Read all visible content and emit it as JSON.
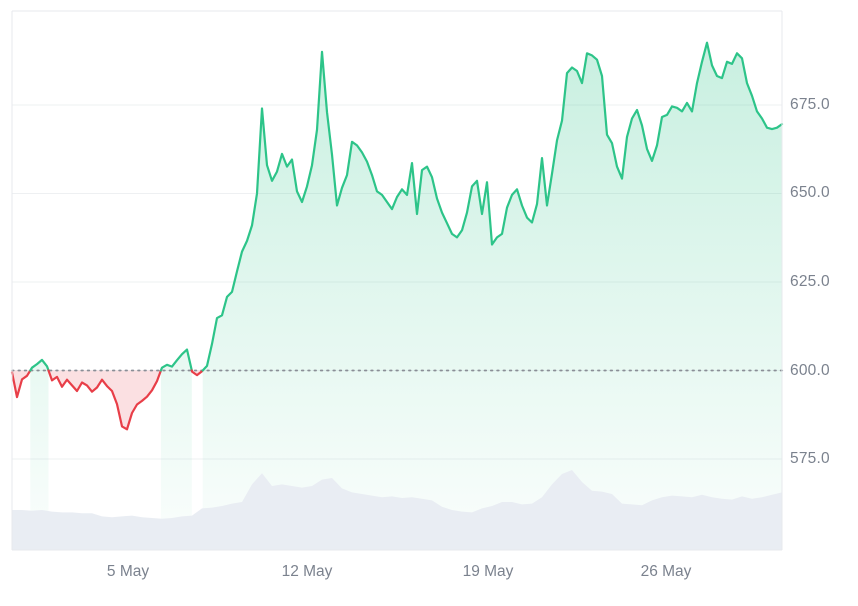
{
  "chart_data": {
    "type": "area",
    "title": "",
    "subtitle": "",
    "legend": "none",
    "grid": "horizontal",
    "x_axis": {
      "tick_labels": [
        "5 May",
        "12 May",
        "19 May",
        "26 May"
      ],
      "span_note": "about 30 Apr to 30 May, evenly spaced samples"
    },
    "y_axis": {
      "tick_labels": [
        "675.0",
        "650.0",
        "625.0",
        "600.0",
        "575.0"
      ],
      "tick_values": [
        675,
        650,
        625,
        600,
        575
      ],
      "ylim": [
        566,
        703
      ]
    },
    "baseline_value": 600,
    "series": [
      {
        "name": "price",
        "values": [
          599.5,
          592.5,
          597.5,
          598.5,
          600.8,
          601.8,
          603,
          601.2,
          597.2,
          598.2,
          595.4,
          597.4,
          595.8,
          594.2,
          596.6,
          595.8,
          594,
          595.2,
          597.4,
          595.6,
          594.2,
          590.5,
          584.2,
          583.4,
          588,
          590.4,
          591.4,
          592.6,
          594.4,
          597,
          600.8,
          601.6,
          601.1,
          602.9,
          604.6,
          605.9,
          599.7,
          598.7,
          599.8,
          601.3,
          607.5,
          614.8,
          615.6,
          620.8,
          622.2,
          628,
          633.6,
          636.6,
          641,
          650,
          674,
          658,
          653.6,
          656.2,
          661.2,
          657.6,
          659.6,
          650.6,
          647.6,
          652,
          658,
          668,
          690,
          673,
          661,
          646.6,
          651.6,
          655.2,
          664.6,
          663.6,
          661.6,
          659,
          655.2,
          650.6,
          649.6,
          647.6,
          645.6,
          649,
          651.2,
          649.6,
          658.6,
          644.2,
          656.6,
          657.6,
          654.6,
          648.6,
          644.6,
          641.6,
          638.6,
          637.6,
          639.6,
          644.6,
          652,
          653.6,
          644.2,
          653.2,
          635.6,
          637.6,
          638.6,
          646,
          649.6,
          651.2,
          646.6,
          643.2,
          641.8,
          647,
          660,
          646.6,
          655.6,
          665,
          670.6,
          684,
          685.6,
          684.6,
          681.2,
          689.6,
          689,
          687.8,
          683.2,
          666.6,
          664.2,
          657.6,
          654.2,
          666,
          671.2,
          673.6,
          669.2,
          662.6,
          659.2,
          663.6,
          671.6,
          672.2,
          674.6,
          674.2,
          673.2,
          675.6,
          673.2,
          681.2,
          687.2,
          692.6,
          686.2,
          683.2,
          682.6,
          687.2,
          686.6,
          689.6,
          688.2,
          681.2,
          677.6,
          673.2,
          671.2,
          668.6,
          668.2,
          668.6,
          669.6
        ]
      }
    ],
    "volume_series": {
      "name": "volume",
      "values_normalized": [
        0.5,
        0.5,
        0.49,
        0.5,
        0.48,
        0.47,
        0.47,
        0.46,
        0.46,
        0.42,
        0.41,
        0.42,
        0.43,
        0.41,
        0.4,
        0.39,
        0.4,
        0.42,
        0.43,
        0.52,
        0.53,
        0.55,
        0.58,
        0.6,
        0.82,
        0.96,
        0.8,
        0.82,
        0.8,
        0.78,
        0.8,
        0.88,
        0.9,
        0.77,
        0.72,
        0.7,
        0.68,
        0.66,
        0.67,
        0.65,
        0.66,
        0.64,
        0.62,
        0.54,
        0.5,
        0.48,
        0.47,
        0.52,
        0.55,
        0.6,
        0.6,
        0.57,
        0.58,
        0.66,
        0.82,
        0.95,
        1.0,
        0.85,
        0.74,
        0.73,
        0.7,
        0.58,
        0.57,
        0.56,
        0.62,
        0.66,
        0.68,
        0.67,
        0.66,
        0.69,
        0.66,
        0.64,
        0.63,
        0.67,
        0.64,
        0.66,
        0.69,
        0.72
      ]
    },
    "colors": {
      "up_line": "#2dc489",
      "up_fill_top": "rgba(45,196,137,0.26)",
      "up_fill_bottom": "rgba(45,196,137,0.02)",
      "down_line": "#e83e48",
      "down_fill": "rgba(232,62,72,0.16)",
      "volume_fill": "#e9edf3",
      "grid": "#eef0f2",
      "grid_faint": "#f3f4f6",
      "baseline_dots": "#8a8e96",
      "axis_text": "#7b828e",
      "border": "#e7e9ed"
    }
  }
}
